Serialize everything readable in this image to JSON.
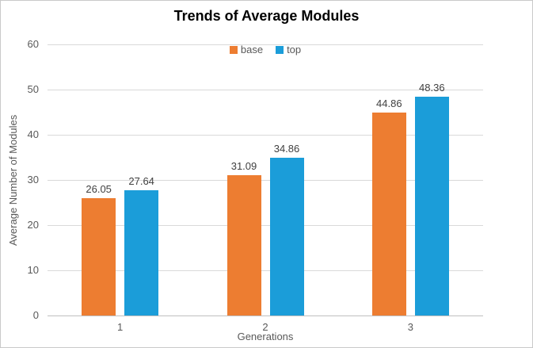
{
  "chart_data": {
    "type": "bar",
    "title": "Trends of Average Modules",
    "xlabel": "Generations",
    "ylabel": "Average Number of Modules",
    "categories": [
      "1",
      "2",
      "3"
    ],
    "series": [
      {
        "name": "base",
        "color": "#ED7D31",
        "values": [
          26.05,
          31.09,
          44.86
        ]
      },
      {
        "name": "top",
        "color": "#1B9DD9",
        "values": [
          27.64,
          34.86,
          48.36
        ]
      }
    ],
    "ylim": [
      0,
      60
    ],
    "yticks": [
      0,
      10,
      20,
      30,
      40,
      50,
      60
    ],
    "grid": true,
    "legend_position": "top-center",
    "value_labels": true,
    "value_label_format": "2-decimals"
  },
  "colors": {
    "base_series": "#ED7D31",
    "top_series": "#1B9DD9",
    "gridline": "#D9D9D9",
    "axis_line": "#BFBFBF",
    "tick_text": "#595959",
    "value_label_text": "#404040",
    "title_text": "#000000",
    "chart_border": "#C9C9C9"
  }
}
